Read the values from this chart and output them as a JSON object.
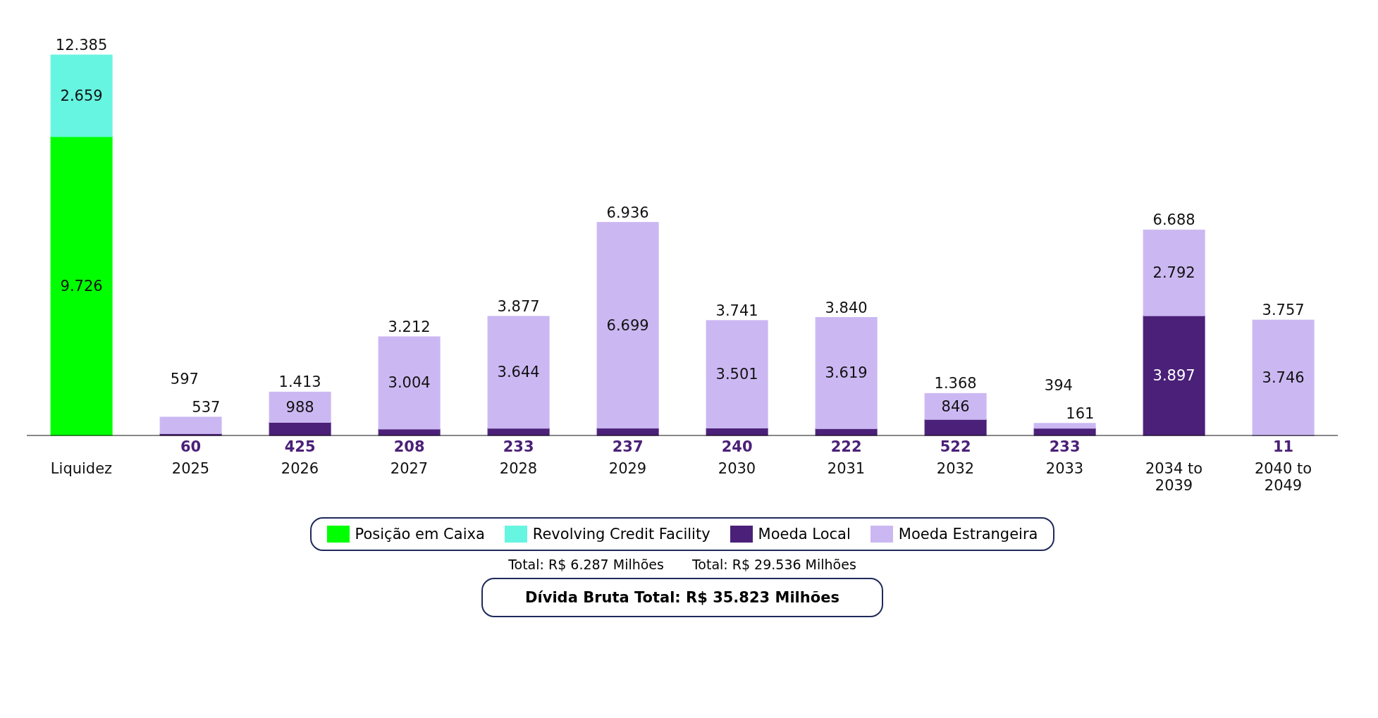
{
  "chart_data": {
    "type": "bar",
    "stacked": true,
    "categories": [
      "Liquidez",
      "2025",
      "2026",
      "2027",
      "2028",
      "2029",
      "2030",
      "2031",
      "2032",
      "2033",
      "2034 to 2039",
      "2040 to 2049"
    ],
    "series": [
      {
        "name": "Posição em Caixa",
        "color": "#00ff00",
        "values": [
          9726,
          null,
          null,
          null,
          null,
          null,
          null,
          null,
          null,
          null,
          null,
          null
        ],
        "value_labels": [
          "9.726",
          null,
          null,
          null,
          null,
          null,
          null,
          null,
          null,
          null,
          null,
          null
        ]
      },
      {
        "name": "Revolving Credit Facility",
        "color": "#66f5e0",
        "values": [
          2659,
          null,
          null,
          null,
          null,
          null,
          null,
          null,
          null,
          null,
          null,
          null
        ],
        "value_labels": [
          "2.659",
          null,
          null,
          null,
          null,
          null,
          null,
          null,
          null,
          null,
          null,
          null
        ]
      },
      {
        "name": "Moeda Local",
        "color": "#4b2078",
        "values": [
          null,
          60,
          425,
          208,
          233,
          237,
          240,
          222,
          522,
          233,
          3897,
          11
        ],
        "value_labels": [
          null,
          "60",
          "425",
          "208",
          "233",
          "237",
          "240",
          "222",
          "522",
          "233",
          "3.897",
          "11"
        ]
      },
      {
        "name": "Moeda Estrangeira",
        "color": "#cbb8f2",
        "values": [
          null,
          537,
          988,
          3004,
          3644,
          6699,
          3501,
          3619,
          846,
          161,
          2792,
          3746
        ],
        "value_labels": [
          null,
          "537",
          "988",
          "3.004",
          "3.644",
          "6.699",
          "3.501",
          "3.619",
          "846",
          "161",
          "2.792",
          "3.746"
        ]
      }
    ],
    "totals": [
      "12.385",
      "597",
      "1.413",
      "3.212",
      "3.877",
      "6.936",
      "3.741",
      "3.840",
      "1.368",
      "394",
      "6.688",
      "3.757"
    ],
    "legend": "bottom",
    "annotations": [
      "Total: R$ 6.287 Milhões",
      "Total: R$ 29.536 Milhões",
      "Dívida Bruta Total: R$ 35.823 Milhões"
    ]
  }
}
